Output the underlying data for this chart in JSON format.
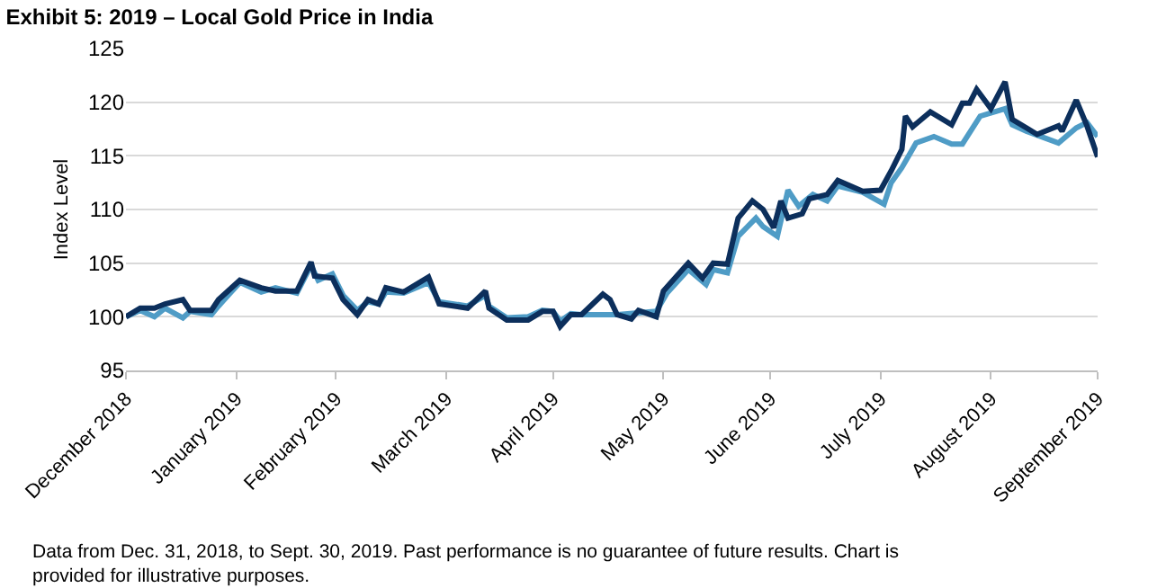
{
  "chart_data": {
    "type": "line",
    "title": "Exhibit 5: 2019 – Local Gold Price in India",
    "ylabel": "Index Level",
    "annotations": [
      "Data from Dec. 31, 2018, to Sept. 30, 2019. Past performance is no guarantee of future results. Chart is provided for illustrative purposes."
    ],
    "series": [
      {
        "color": "#4f9cc6",
        "x": [
          "2018-12-31",
          "2019-01-04",
          "2019-01-08",
          "2019-01-11",
          "2019-01-16",
          "2019-01-18",
          "2019-01-24",
          "2019-01-26",
          "2019-02-01",
          "2019-02-07",
          "2019-02-11",
          "2019-02-17",
          "2019-02-21",
          "2019-02-23",
          "2019-02-27",
          "2019-03-02",
          "2019-03-06",
          "2019-03-09",
          "2019-03-12",
          "2019-03-14",
          "2019-03-19",
          "2019-03-26",
          "2019-03-29",
          "2019-04-06",
          "2019-04-11",
          "2019-04-12",
          "2019-04-17",
          "2019-04-23",
          "2019-04-27",
          "2019-04-30",
          "2019-05-02",
          "2019-05-05",
          "2019-05-08",
          "2019-05-18",
          "2019-05-29",
          "2019-06-01",
          "2019-06-07",
          "2019-06-12",
          "2019-06-14",
          "2019-06-18",
          "2019-06-21",
          "2019-06-26",
          "2019-06-28",
          "2019-07-02",
          "2019-07-05",
          "2019-07-08",
          "2019-07-12",
          "2019-07-16",
          "2019-07-19",
          "2019-07-26",
          "2019-08-01",
          "2019-08-03",
          "2019-08-06",
          "2019-08-10",
          "2019-08-15",
          "2019-08-20",
          "2019-08-23",
          "2019-08-28",
          "2019-08-31",
          "2019-09-04",
          "2019-09-06",
          "2019-09-10",
          "2019-09-19",
          "2019-09-24",
          "2019-09-27",
          "2019-09-30"
        ],
        "values": [
          100,
          100.6,
          100,
          100.8,
          99.9,
          100.5,
          100.2,
          101,
          103.2,
          102.3,
          102.7,
          102.2,
          104.8,
          103.4,
          104,
          102,
          100.6,
          101.4,
          101.2,
          102.3,
          102.2,
          103.2,
          101.4,
          101,
          102,
          101,
          99.9,
          100,
          100.6,
          100.5,
          99.6,
          100.3,
          100.2,
          100.2,
          100.5,
          102.2,
          104.4,
          103,
          104.4,
          104.1,
          107.5,
          109.2,
          108.4,
          107.5,
          111.8,
          110.3,
          111.4,
          110.8,
          112.2,
          111.6,
          110.5,
          112.5,
          113.9,
          116.2,
          116.8,
          116.1,
          116.1,
          118.7,
          119,
          119.4,
          117.9,
          117.3,
          116.2,
          117.6,
          118.1,
          116.8
        ]
      },
      {
        "color": "#0c2f5c",
        "x": [
          "2018-12-31",
          "2019-01-04",
          "2019-01-08",
          "2019-01-11",
          "2019-01-16",
          "2019-01-18",
          "2019-01-24",
          "2019-01-26",
          "2019-02-01",
          "2019-02-07",
          "2019-02-11",
          "2019-02-17",
          "2019-02-21",
          "2019-02-22",
          "2019-02-27",
          "2019-03-02",
          "2019-03-06",
          "2019-03-09",
          "2019-03-12",
          "2019-03-14",
          "2019-03-19",
          "2019-03-26",
          "2019-03-29",
          "2019-04-06",
          "2019-04-11",
          "2019-04-12",
          "2019-04-17",
          "2019-04-23",
          "2019-04-27",
          "2019-04-30",
          "2019-05-02",
          "2019-05-05",
          "2019-05-08",
          "2019-05-14",
          "2019-05-16",
          "2019-05-18",
          "2019-05-22",
          "2019-05-24",
          "2019-05-29",
          "2019-05-31",
          "2019-06-07",
          "2019-06-11",
          "2019-06-14",
          "2019-06-18",
          "2019-06-21",
          "2019-06-25",
          "2019-06-28",
          "2019-07-01",
          "2019-07-03",
          "2019-07-05",
          "2019-07-09",
          "2019-07-11",
          "2019-07-16",
          "2019-07-19",
          "2019-07-26",
          "2019-07-31",
          "2019-08-03",
          "2019-08-06",
          "2019-08-07",
          "2019-08-09",
          "2019-08-14",
          "2019-08-20",
          "2019-08-23",
          "2019-08-25",
          "2019-08-27",
          "2019-08-31",
          "2019-09-04",
          "2019-09-06",
          "2019-09-10",
          "2019-09-13",
          "2019-09-19",
          "2019-09-20",
          "2019-09-24",
          "2019-09-27",
          "2019-09-30"
        ],
        "values": [
          100,
          100.8,
          100.8,
          101.2,
          101.6,
          100.6,
          100.6,
          101.6,
          103.4,
          102.7,
          102.4,
          102.4,
          105.1,
          103.8,
          103.6,
          101.6,
          100.2,
          101.6,
          101.2,
          102.7,
          102.3,
          103.7,
          101.2,
          100.8,
          102.4,
          100.8,
          99.7,
          99.7,
          100.5,
          100.5,
          99.1,
          100.2,
          100.2,
          102.1,
          101.6,
          100.2,
          99.8,
          100.6,
          100,
          102.4,
          105,
          103.6,
          105,
          104.9,
          109.2,
          110.8,
          110,
          108.3,
          110.8,
          109.2,
          109.6,
          111,
          111.4,
          112.7,
          111.7,
          111.8,
          113.6,
          115.6,
          118.7,
          117.7,
          119.1,
          117.9,
          119.9,
          119.9,
          121.2,
          119.4,
          121.9,
          118.4,
          117.6,
          117,
          117.8,
          117.3,
          120.2,
          117.8,
          114.9
        ]
      }
    ],
    "xlim": [
      "2018-12-31",
      "2019-09-30"
    ],
    "xticks": [
      {
        "value": "2018-12-31",
        "label": "December 2018"
      },
      {
        "value": "2019-01-31",
        "label": "January 2019"
      },
      {
        "value": "2019-02-28",
        "label": "February 2019"
      },
      {
        "value": "2019-03-31",
        "label": "March 2019"
      },
      {
        "value": "2019-04-30",
        "label": "April 2019"
      },
      {
        "value": "2019-05-31",
        "label": "May 2019"
      },
      {
        "value": "2019-06-30",
        "label": "June 2019"
      },
      {
        "value": "2019-07-31",
        "label": "July 2019"
      },
      {
        "value": "2019-08-31",
        "label": "August 2019"
      },
      {
        "value": "2019-09-30",
        "label": "September 2019"
      }
    ],
    "ylim": [
      95,
      125
    ],
    "yticks": [
      95,
      100,
      105,
      110,
      115,
      120,
      125
    ],
    "grid": "y",
    "marker": "none",
    "line_style": "solid"
  }
}
